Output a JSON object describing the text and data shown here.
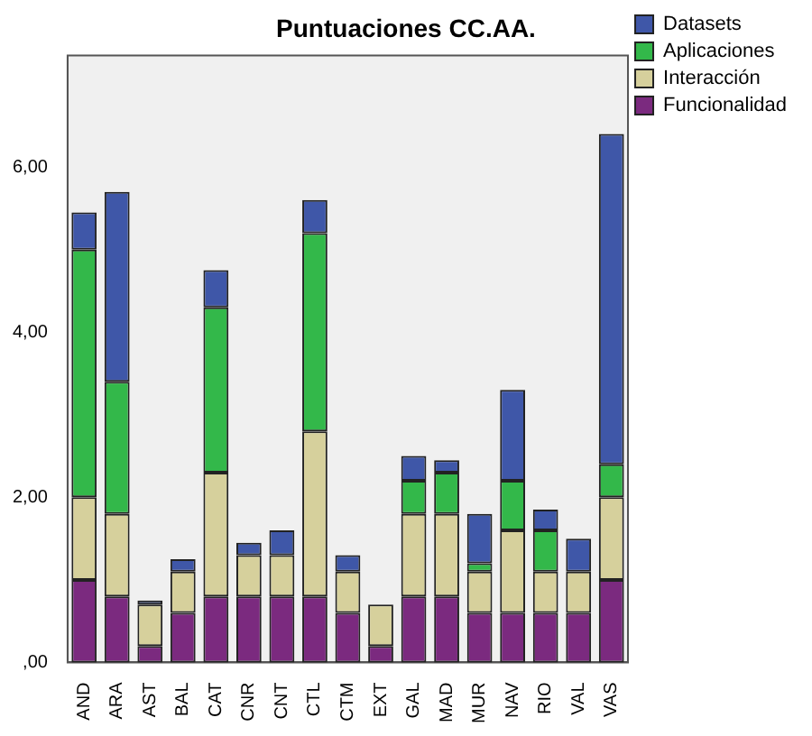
{
  "chart_data": {
    "type": "bar",
    "title": "Puntuaciones CC.AA.",
    "stacked": true,
    "legend": "top right",
    "grid": false,
    "categories": [
      "AND",
      "ARA",
      "AST",
      "BAL",
      "CAT",
      "CNR",
      "CNT",
      "CTL",
      "CTM",
      "EXT",
      "GAL",
      "MAD",
      "MUR",
      "NAV",
      "RIO",
      "VAL",
      "VAS"
    ],
    "ylim": [
      0,
      7.35
    ],
    "yticks": [
      {
        "value": 0,
        "label": ",00"
      },
      {
        "value": 2,
        "label": "2,00"
      },
      {
        "value": 4,
        "label": "4,00"
      },
      {
        "value": 6,
        "label": "6,00"
      }
    ],
    "series": [
      {
        "name": "Funcionalidad",
        "color": "#7b2a7f",
        "values": [
          1.0,
          0.8,
          0.2,
          0.6,
          0.8,
          0.8,
          0.8,
          0.8,
          0.6,
          0.2,
          0.8,
          0.8,
          0.6,
          0.6,
          0.6,
          0.6,
          1.0
        ]
      },
      {
        "name": "Interacción",
        "color": "#d6d09c",
        "values": [
          1.0,
          1.0,
          0.5,
          0.5,
          1.5,
          0.5,
          0.5,
          2.0,
          0.5,
          0.5,
          1.0,
          1.0,
          0.5,
          1.0,
          0.5,
          0.5,
          1.0
        ]
      },
      {
        "name": "Aplicaciones",
        "color": "#33b84a",
        "values": [
          3.0,
          1.6,
          0.0,
          0.0,
          2.0,
          0.0,
          0.0,
          2.4,
          0.0,
          0.0,
          0.4,
          0.5,
          0.1,
          0.6,
          0.5,
          0.0,
          0.4
        ]
      },
      {
        "name": "Datasets",
        "color": "#3f57a8",
        "values": [
          0.45,
          2.3,
          0.05,
          0.15,
          0.45,
          0.15,
          0.3,
          0.4,
          0.2,
          0.0,
          0.3,
          0.15,
          0.6,
          1.1,
          0.25,
          0.4,
          4.0
        ]
      }
    ]
  }
}
